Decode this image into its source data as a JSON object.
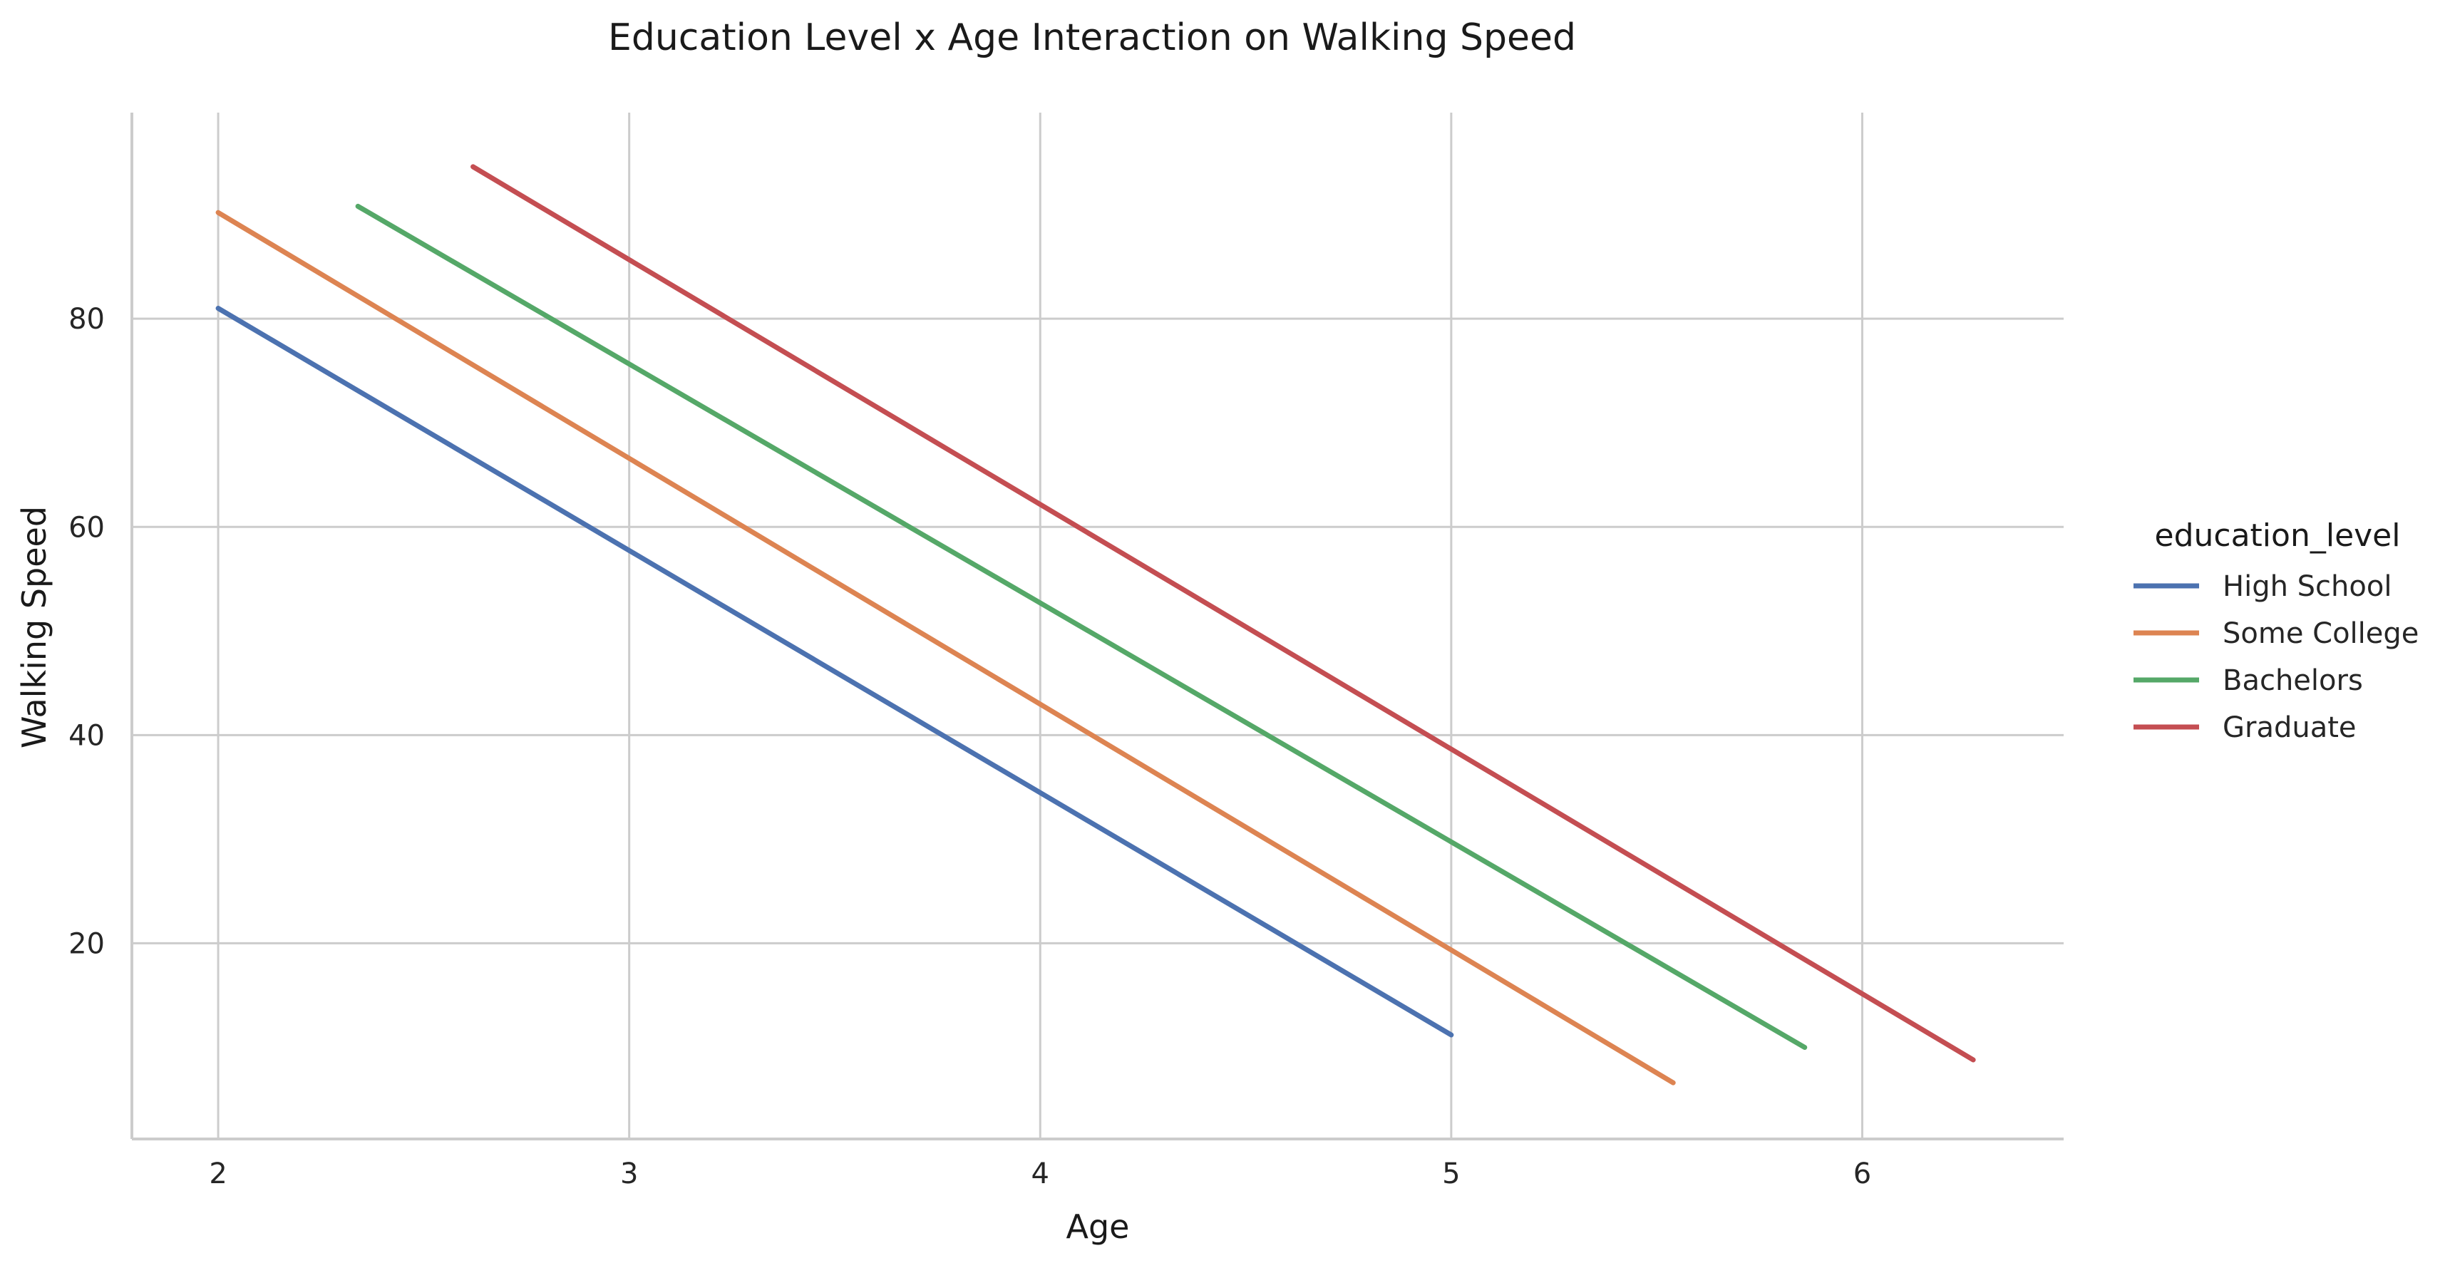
{
  "chart_data": {
    "type": "line",
    "title": "Education Level x Age Interaction on Walking Speed",
    "xlabel": "Age",
    "ylabel": "Walking Speed",
    "xlim": [
      1.79,
      6.49
    ],
    "ylim": [
      1.2,
      99.8
    ],
    "xticks": [
      2,
      3,
      4,
      5,
      6
    ],
    "yticks": [
      20,
      40,
      60,
      80
    ],
    "grid": true,
    "legend": {
      "title": "education_level",
      "placement": "right"
    },
    "series": [
      {
        "name": "High School",
        "color": "#4C72B0",
        "x": [
          2.0,
          5.0
        ],
        "y": [
          81.0,
          11.2
        ]
      },
      {
        "name": "Some College",
        "color": "#DD8452",
        "x": [
          2.0,
          5.54
        ],
        "y": [
          90.2,
          6.6
        ]
      },
      {
        "name": "Bachelors",
        "color": "#55A868",
        "x": [
          2.34,
          5.86
        ],
        "y": [
          90.8,
          10.0
        ]
      },
      {
        "name": "Graduate",
        "color": "#C44E52",
        "x": [
          2.62,
          6.27
        ],
        "y": [
          94.6,
          8.8
        ]
      }
    ]
  }
}
